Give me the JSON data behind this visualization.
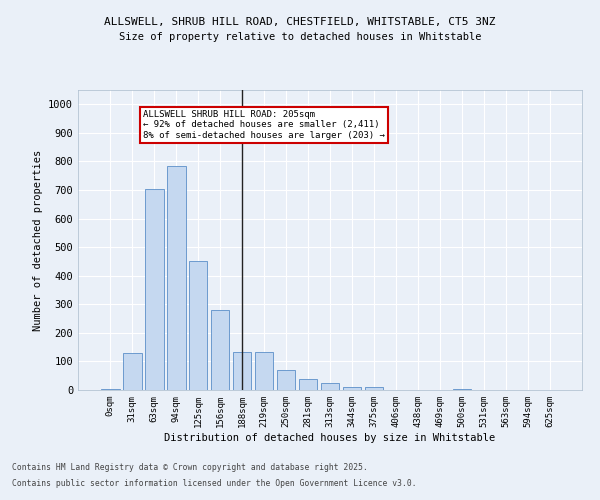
{
  "title1": "ALLSWELL, SHRUB HILL ROAD, CHESTFIELD, WHITSTABLE, CT5 3NZ",
  "title2": "Size of property relative to detached houses in Whitstable",
  "xlabel": "Distribution of detached houses by size in Whitstable",
  "ylabel": "Number of detached properties",
  "bar_color": "#c5d8f0",
  "bar_edge_color": "#5b8fc9",
  "categories": [
    "0sqm",
    "31sqm",
    "63sqm",
    "94sqm",
    "125sqm",
    "156sqm",
    "188sqm",
    "219sqm",
    "250sqm",
    "281sqm",
    "313sqm",
    "344sqm",
    "375sqm",
    "406sqm",
    "438sqm",
    "469sqm",
    "500sqm",
    "531sqm",
    "563sqm",
    "594sqm",
    "625sqm"
  ],
  "values": [
    5,
    128,
    705,
    785,
    450,
    280,
    133,
    133,
    70,
    40,
    23,
    10,
    10,
    0,
    0,
    0,
    5,
    0,
    0,
    0,
    0
  ],
  "ylim": [
    0,
    1050
  ],
  "yticks": [
    0,
    100,
    200,
    300,
    400,
    500,
    600,
    700,
    800,
    900,
    1000
  ],
  "vline_x": 6.0,
  "annotation_text": "ALLSWELL SHRUB HILL ROAD: 205sqm\n← 92% of detached houses are smaller (2,411)\n8% of semi-detached houses are larger (203) →",
  "annotation_box_color": "#ffffff",
  "annotation_border_color": "#cc0000",
  "bg_color": "#eaf0f8",
  "grid_color": "#ffffff",
  "footer1": "Contains HM Land Registry data © Crown copyright and database right 2025.",
  "footer2": "Contains public sector information licensed under the Open Government Licence v3.0."
}
